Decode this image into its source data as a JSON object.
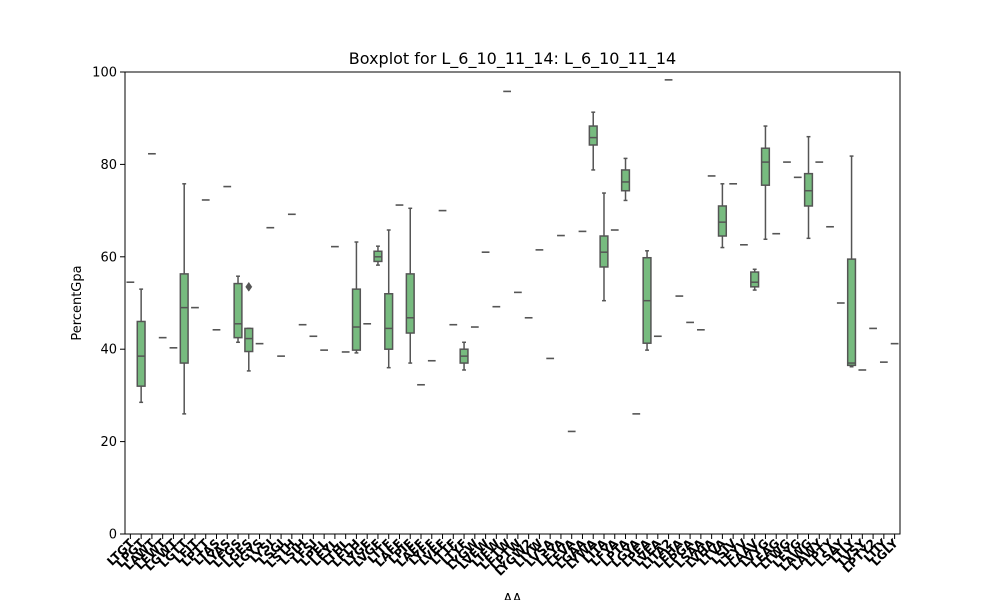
{
  "chart_data": {
    "type": "boxplot",
    "title": "Boxplot for L_6_10_11_14: L_6_10_11_14",
    "xlabel": "AA",
    "ylabel": "PercentGpa",
    "ylim": [
      0,
      100
    ],
    "yticks": [
      0,
      20,
      40,
      60,
      80,
      100
    ],
    "grid": false,
    "box_color": "#77bb7f",
    "line_color": "#555555",
    "categories": [
      "LTGT",
      "LPGT",
      "LAWT",
      "LEWT",
      "LGWT",
      "LGTT",
      "LFIT",
      "LPTT",
      "LTAS",
      "LYAS",
      "LFGS",
      "LGES",
      "LGYS",
      "LYSI",
      "LSGI",
      "LSTH",
      "LSIH",
      "LFSI",
      "LPEL",
      "LEYL",
      "LTHL",
      "LFLH",
      "LYGE",
      "LVGF",
      "LITF",
      "LAFE",
      "LPIE",
      "LAEF",
      "LYFF",
      "LVEF",
      "LTTF",
      "LTYF",
      "LYGW",
      "LVEW",
      "LIFW",
      "LETW",
      "LPTW",
      "LYGW2",
      "LIYW",
      "LVSA",
      "LEYA",
      "LEVA",
      "LGAA",
      "LYWA",
      "LITA",
      "LFYA",
      "LPTA",
      "LGYA",
      "LPEA",
      "LVEA",
      "LITA2",
      "LEHA",
      "LPGA",
      "LSAA",
      "LVHA",
      "LTVA",
      "LSIV",
      "LEYV",
      "LAAV",
      "LVYG",
      "LEAG",
      "LTWG",
      "LEYG",
      "LAWG",
      "LAWY",
      "LPTY",
      "LSAY",
      "LTLY",
      "LVSY",
      "LPTY2",
      "LTIY",
      "LGLY"
    ],
    "boxes": [
      {
        "min": 54.5,
        "q1": 54.5,
        "median": 54.5,
        "q3": 54.5,
        "max": 54.5
      },
      {
        "min": 28.5,
        "q1": 32,
        "median": 38.5,
        "q3": 46,
        "max": 53
      },
      {
        "min": 82.3,
        "q1": 82.3,
        "median": 82.3,
        "q3": 82.3,
        "max": 82.3
      },
      {
        "min": 42.5,
        "q1": 42.5,
        "median": 42.5,
        "q3": 42.5,
        "max": 42.5
      },
      {
        "min": 40.3,
        "q1": 40.3,
        "median": 40.3,
        "q3": 40.3,
        "max": 40.3
      },
      {
        "min": 26,
        "q1": 37,
        "median": 49,
        "q3": 56.3,
        "max": 75.8
      },
      {
        "min": 49,
        "q1": 49,
        "median": 49,
        "q3": 49,
        "max": 49
      },
      {
        "min": 72.3,
        "q1": 72.3,
        "median": 72.3,
        "q3": 72.3,
        "max": 72.3
      },
      {
        "min": 44.2,
        "q1": 44.2,
        "median": 44.2,
        "q3": 44.2,
        "max": 44.2
      },
      {
        "min": 75.2,
        "q1": 75.2,
        "median": 75.2,
        "q3": 75.2,
        "max": 75.2
      },
      {
        "min": 41.5,
        "q1": 42.5,
        "median": 45.5,
        "q3": 54.2,
        "max": 55.8
      },
      {
        "min": 35.3,
        "q1": 39.5,
        "median": 42.3,
        "q3": 44.5,
        "max": 44.5,
        "outliers": [
          53.5
        ]
      },
      {
        "min": 41.2,
        "q1": 41.2,
        "median": 41.2,
        "q3": 41.2,
        "max": 41.2
      },
      {
        "min": 66.3,
        "q1": 66.3,
        "median": 66.3,
        "q3": 66.3,
        "max": 66.3
      },
      {
        "min": 38.5,
        "q1": 38.5,
        "median": 38.5,
        "q3": 38.5,
        "max": 38.5
      },
      {
        "min": 69.2,
        "q1": 69.2,
        "median": 69.2,
        "q3": 69.2,
        "max": 69.2
      },
      {
        "min": 45.3,
        "q1": 45.3,
        "median": 45.3,
        "q3": 45.3,
        "max": 45.3
      },
      {
        "min": 42.8,
        "q1": 42.8,
        "median": 42.8,
        "q3": 42.8,
        "max": 42.8
      },
      {
        "min": 39.8,
        "q1": 39.8,
        "median": 39.8,
        "q3": 39.8,
        "max": 39.8
      },
      {
        "min": 62.2,
        "q1": 62.2,
        "median": 62.2,
        "q3": 62.2,
        "max": 62.2
      },
      {
        "min": 39.4,
        "q1": 39.4,
        "median": 39.4,
        "q3": 39.4,
        "max": 39.4
      },
      {
        "min": 39.2,
        "q1": 39.8,
        "median": 44.8,
        "q3": 53,
        "max": 63.2
      },
      {
        "min": 45.5,
        "q1": 45.5,
        "median": 45.5,
        "q3": 45.5,
        "max": 45.5
      },
      {
        "min": 58.2,
        "q1": 59,
        "median": 60,
        "q3": 61.2,
        "max": 62.3
      },
      {
        "min": 36,
        "q1": 40,
        "median": 44.5,
        "q3": 52,
        "max": 65.8
      },
      {
        "min": 71.2,
        "q1": 71.2,
        "median": 71.2,
        "q3": 71.2,
        "max": 71.2
      },
      {
        "min": 37,
        "q1": 43.5,
        "median": 46.8,
        "q3": 56.3,
        "max": 70.5
      },
      {
        "min": 32.3,
        "q1": 32.3,
        "median": 32.3,
        "q3": 32.3,
        "max": 32.3
      },
      {
        "min": 37.5,
        "q1": 37.5,
        "median": 37.5,
        "q3": 37.5,
        "max": 37.5
      },
      {
        "min": 70,
        "q1": 70,
        "median": 70,
        "q3": 70,
        "max": 70
      },
      {
        "min": 45.3,
        "q1": 45.3,
        "median": 45.3,
        "q3": 45.3,
        "max": 45.3
      },
      {
        "min": 35.5,
        "q1": 37,
        "median": 38.5,
        "q3": 40,
        "max": 41.5
      },
      {
        "min": 44.8,
        "q1": 44.8,
        "median": 44.8,
        "q3": 44.8,
        "max": 44.8
      },
      {
        "min": 61,
        "q1": 61,
        "median": 61,
        "q3": 61,
        "max": 61
      },
      {
        "min": 49.2,
        "q1": 49.2,
        "median": 49.2,
        "q3": 49.2,
        "max": 49.2
      },
      {
        "min": 95.8,
        "q1": 95.8,
        "median": 95.8,
        "q3": 95.8,
        "max": 95.8
      },
      {
        "min": 52.3,
        "q1": 52.3,
        "median": 52.3,
        "q3": 52.3,
        "max": 52.3
      },
      {
        "min": 46.8,
        "q1": 46.8,
        "median": 46.8,
        "q3": 46.8,
        "max": 46.8
      },
      {
        "min": 61.5,
        "q1": 61.5,
        "median": 61.5,
        "q3": 61.5,
        "max": 61.5
      },
      {
        "min": 38,
        "q1": 38,
        "median": 38,
        "q3": 38,
        "max": 38
      },
      {
        "min": 64.6,
        "q1": 64.6,
        "median": 64.6,
        "q3": 64.6,
        "max": 64.6
      },
      {
        "min": 22.2,
        "q1": 22.2,
        "median": 22.2,
        "q3": 22.2,
        "max": 22.2
      },
      {
        "min": 65.5,
        "q1": 65.5,
        "median": 65.5,
        "q3": 65.5,
        "max": 65.5
      },
      {
        "min": 78.8,
        "q1": 84.2,
        "median": 85.8,
        "q3": 88.3,
        "max": 91.3
      },
      {
        "min": 50.5,
        "q1": 57.8,
        "median": 61,
        "q3": 64.5,
        "max": 73.8
      },
      {
        "min": 65.8,
        "q1": 65.8,
        "median": 65.8,
        "q3": 65.8,
        "max": 65.8
      },
      {
        "min": 72.2,
        "q1": 74.3,
        "median": 76.2,
        "q3": 78.8,
        "max": 81.3
      },
      {
        "min": 26,
        "q1": 26,
        "median": 26,
        "q3": 26,
        "max": 26
      },
      {
        "min": 39.8,
        "q1": 41.3,
        "median": 50.5,
        "q3": 59.8,
        "max": 61.3
      },
      {
        "min": 42.8,
        "q1": 42.8,
        "median": 42.8,
        "q3": 42.8,
        "max": 42.8
      },
      {
        "min": 98.3,
        "q1": 98.3,
        "median": 98.3,
        "q3": 98.3,
        "max": 98.3
      },
      {
        "min": 51.5,
        "q1": 51.5,
        "median": 51.5,
        "q3": 51.5,
        "max": 51.5
      },
      {
        "min": 45.8,
        "q1": 45.8,
        "median": 45.8,
        "q3": 45.8,
        "max": 45.8
      },
      {
        "min": 44.2,
        "q1": 44.2,
        "median": 44.2,
        "q3": 44.2,
        "max": 44.2
      },
      {
        "min": 77.5,
        "q1": 77.5,
        "median": 77.5,
        "q3": 77.5,
        "max": 77.5
      },
      {
        "min": 62,
        "q1": 64.5,
        "median": 67.5,
        "q3": 71,
        "max": 75.8
      },
      {
        "min": 75.8,
        "q1": 75.8,
        "median": 75.8,
        "q3": 75.8,
        "max": 75.8
      },
      {
        "min": 62.6,
        "q1": 62.6,
        "median": 62.6,
        "q3": 62.6,
        "max": 62.6
      },
      {
        "min": 52.8,
        "q1": 53.5,
        "median": 54.5,
        "q3": 56.7,
        "max": 57.3
      },
      {
        "min": 63.8,
        "q1": 75.5,
        "median": 80.5,
        "q3": 83.5,
        "max": 88.3
      },
      {
        "min": 65,
        "q1": 65,
        "median": 65,
        "q3": 65,
        "max": 65
      },
      {
        "min": 80.5,
        "q1": 80.5,
        "median": 80.5,
        "q3": 80.5,
        "max": 80.5
      },
      {
        "min": 77.2,
        "q1": 77.2,
        "median": 77.2,
        "q3": 77.2,
        "max": 77.2
      },
      {
        "min": 64,
        "q1": 71,
        "median": 74.3,
        "q3": 78,
        "max": 86
      },
      {
        "min": 80.5,
        "q1": 80.5,
        "median": 80.5,
        "q3": 80.5,
        "max": 80.5
      },
      {
        "min": 66.5,
        "q1": 66.5,
        "median": 66.5,
        "q3": 66.5,
        "max": 66.5
      },
      {
        "min": 50,
        "q1": 50,
        "median": 50,
        "q3": 50,
        "max": 50
      },
      {
        "min": 36.2,
        "q1": 36.5,
        "median": 37,
        "q3": 59.5,
        "max": 81.8
      },
      {
        "min": 35.5,
        "q1": 35.5,
        "median": 35.5,
        "q3": 35.5,
        "max": 35.5
      },
      {
        "min": 44.5,
        "q1": 44.5,
        "median": 44.5,
        "q3": 44.5,
        "max": 44.5
      },
      {
        "min": 37.2,
        "q1": 37.2,
        "median": 37.2,
        "q3": 37.2,
        "max": 37.2
      },
      {
        "min": 41.2,
        "q1": 41.2,
        "median": 41.2,
        "q3": 41.2,
        "max": 41.2
      }
    ]
  }
}
